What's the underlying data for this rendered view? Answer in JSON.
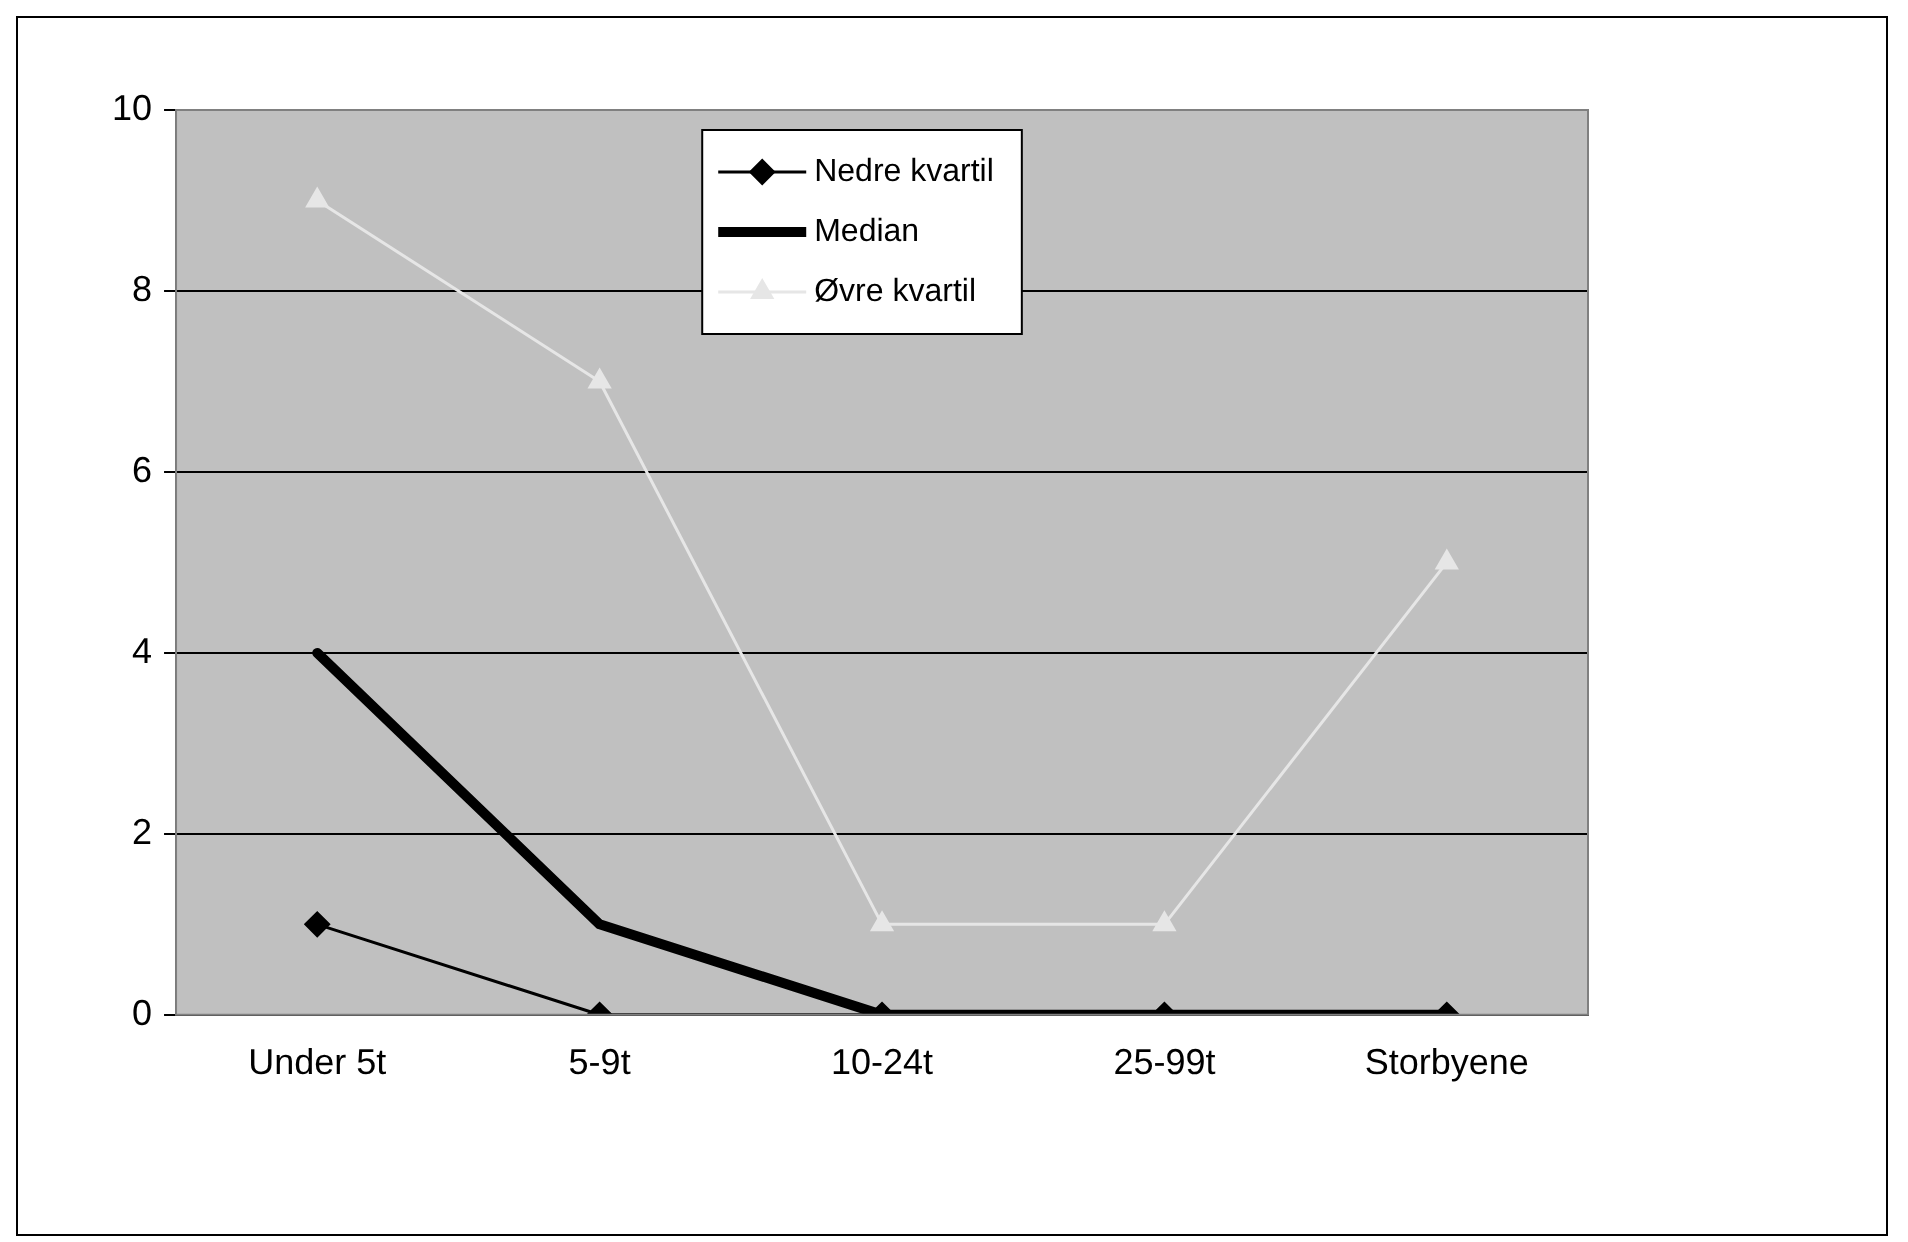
{
  "chart_data": {
    "type": "line",
    "categories": [
      "Under 5t",
      "5-9t",
      "10-24t",
      "25-99t",
      "Storbyene"
    ],
    "series": [
      {
        "name": "Nedre kvartil",
        "color": "#000000",
        "marker": "diamond",
        "values": [
          1,
          0,
          0,
          0,
          0
        ]
      },
      {
        "name": "Median",
        "color": "#000000",
        "marker": "none",
        "values": [
          4,
          1,
          0,
          0,
          0
        ]
      },
      {
        "name": "Øvre kvartil",
        "color": "#e6e6e6",
        "marker": "triangle",
        "values": [
          9,
          7,
          1,
          1,
          5
        ]
      }
    ],
    "ylim": [
      0,
      10
    ],
    "yticks": [
      0,
      2,
      4,
      6,
      8,
      10
    ],
    "grid": "y",
    "legend": "top"
  }
}
